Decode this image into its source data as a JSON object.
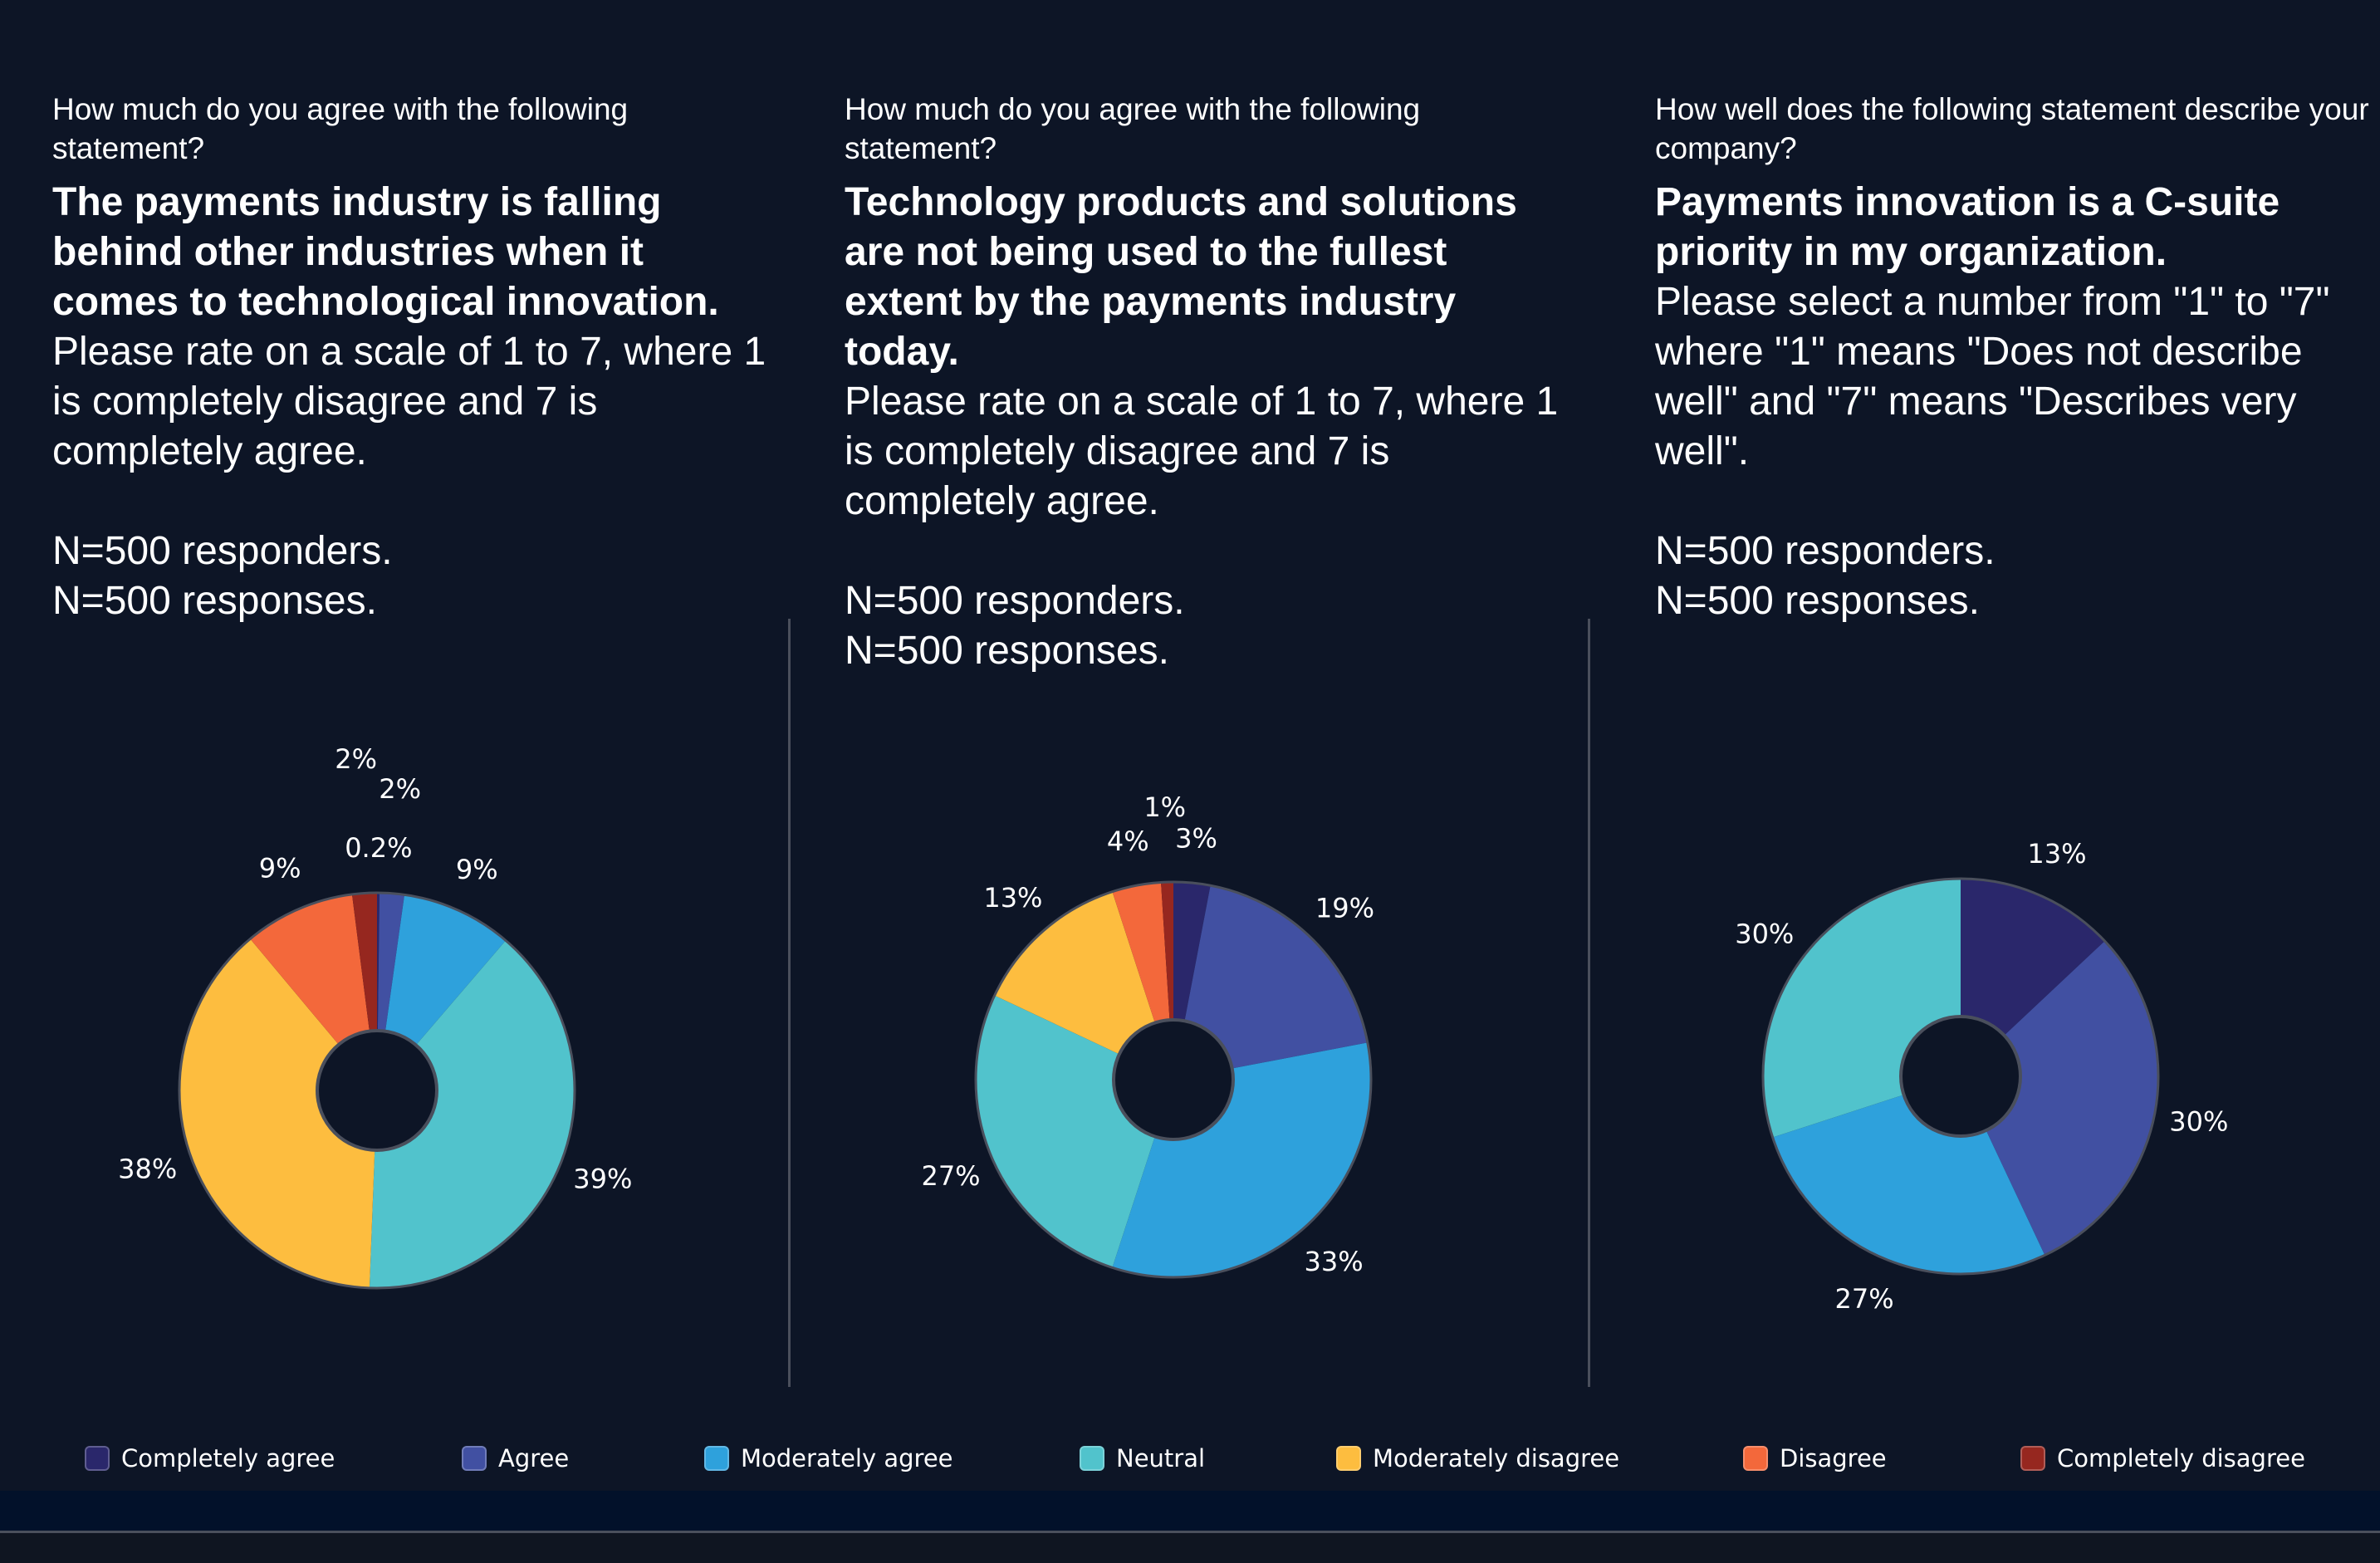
{
  "panels": [
    {
      "question": "How much do you agree with the following statement?",
      "statement": "The payments industry is falling behind other industries when it comes to technological innovation.",
      "instruction": "Please rate on a scale of 1 to 7, where 1 is completely disagree and 7 is completely agree.",
      "responders": "N=500 responders.",
      "responses": "N=500 responses."
    },
    {
      "question": "How much do you agree with the following statement?",
      "statement": "Technology products and solutions are not being used to the fullest extent by the payments industry today.",
      "instruction": "Please rate on a scale of 1 to 7, where 1 is completely disagree and 7 is completely agree.",
      "responders": "N=500 responders.",
      "responses": "N=500 responses."
    },
    {
      "question": "How well does the following statement describe your company?",
      "statement": "Payments innovation is a C-suite priority in my organization.",
      "instruction": "Please select a number from \"1\" to \"7\" where \"1\" means \"Does not describe well\" and \"7\" means \"Describes very well\".",
      "responders": "N=500 responders.",
      "responses": "N=500 responses."
    }
  ],
  "legend": [
    {
      "label": "Completely agree",
      "color": "#2a276b"
    },
    {
      "label": "Agree",
      "color": "#4150a2"
    },
    {
      "label": "Moderately agree",
      "color": "#2ea1dc"
    },
    {
      "label": "Neutral",
      "color": "#51c3cc"
    },
    {
      "label": "Moderately disagree",
      "color": "#fdbd3f"
    },
    {
      "label": "Disagree",
      "color": "#f3683b"
    },
    {
      "label": "Completely disagree",
      "color": "#96271f"
    }
  ],
  "chart_data": [
    {
      "type": "pie",
      "variant": "donut",
      "title": "The payments industry is falling behind other industries when it comes to technological innovation.",
      "categories": [
        "Completely agree",
        "Agree",
        "Moderately agree",
        "Neutral",
        "Moderately disagree",
        "Disagree",
        "Completely disagree"
      ],
      "values": [
        0.2,
        2,
        9,
        39,
        38,
        9,
        2
      ],
      "labels": [
        "0.2%",
        "2%",
        "9%",
        "39%",
        "38%",
        "9%",
        "2%"
      ],
      "unit": "%",
      "legend": "bottom"
    },
    {
      "type": "pie",
      "variant": "donut",
      "title": "Technology products and solutions are not being used to the fullest extent by the payments industry today.",
      "categories": [
        "Completely agree",
        "Agree",
        "Moderately agree",
        "Neutral",
        "Moderately disagree",
        "Disagree",
        "Completely disagree"
      ],
      "values": [
        3,
        19,
        33,
        27,
        13,
        4,
        1
      ],
      "labels": [
        "3%",
        "19%",
        "33%",
        "27%",
        "13%",
        "4%",
        "1%"
      ],
      "unit": "%",
      "legend": "bottom"
    },
    {
      "type": "pie",
      "variant": "donut",
      "title": "Payments innovation is a C-suite priority in my organization.",
      "categories": [
        "Completely agree",
        "Agree",
        "Moderately agree",
        "Neutral"
      ],
      "values": [
        13,
        30,
        27,
        30
      ],
      "labels": [
        "13%",
        "30%",
        "27%",
        "30%"
      ],
      "unit": "%",
      "legend": "bottom"
    }
  ]
}
